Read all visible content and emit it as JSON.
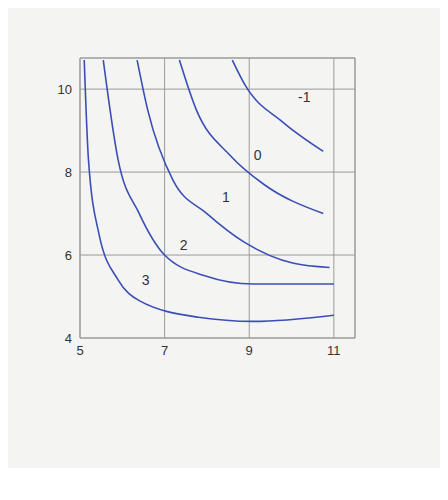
{
  "chart_data": {
    "type": "line",
    "xlim": [
      5,
      11.5
    ],
    "ylim": [
      4,
      10.75
    ],
    "xticks": [
      5,
      7,
      9,
      11
    ],
    "yticks": [
      4,
      6,
      8,
      10
    ],
    "grid": true,
    "tick_labels": true,
    "color": "#3a4fb5",
    "series": [
      {
        "x": [
          5.1,
          5.2,
          5.45,
          5.9,
          6.4,
          7.8,
          9.1,
          11.0
        ],
        "values": [
          10.7,
          8.3,
          6.5,
          5.4,
          4.9,
          4.5,
          4.4,
          4.55
        ]
      },
      {
        "x": [
          5.55,
          5.9,
          6.4,
          7.0,
          7.95,
          9.1,
          11.0
        ],
        "values": [
          10.7,
          8.3,
          7.0,
          6.0,
          5.5,
          5.3,
          5.3
        ]
      },
      {
        "x": [
          6.35,
          6.6,
          7.2,
          8.0,
          8.9,
          10.05,
          10.9
        ],
        "values": [
          10.7,
          9.5,
          7.8,
          7.0,
          6.3,
          5.8,
          5.7
        ]
      },
      {
        "x": [
          7.35,
          7.75,
          8.55,
          9.35,
          10.75
        ],
        "values": [
          10.7,
          9.5,
          8.4,
          7.7,
          7.0
        ]
      },
      {
        "x": [
          8.6,
          8.9,
          9.8,
          10.75
        ],
        "values": [
          10.7,
          10.1,
          9.2,
          8.5
        ]
      }
    ],
    "annotations": [
      {
        "text": "3",
        "x": 6.55,
        "y": 5.4
      },
      {
        "text": "2",
        "x": 7.45,
        "y": 6.25
      },
      {
        "text": "1",
        "x": 8.45,
        "y": 7.4
      },
      {
        "text": "0",
        "x": 9.2,
        "y": 8.4
      },
      {
        "text": "-1",
        "x": 10.3,
        "y": 9.8
      }
    ]
  }
}
